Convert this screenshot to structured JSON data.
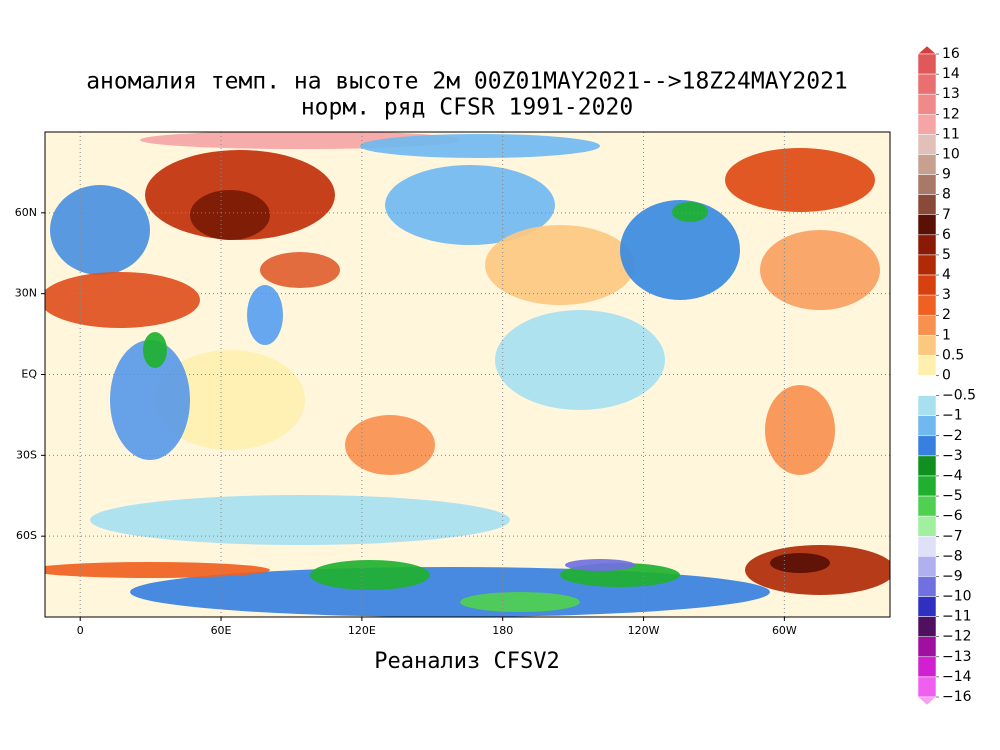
{
  "map": {
    "title": [
      "аномалия темп. на высоте 2м 00Z01MAY2021-->18Z24MAY2021",
      "норм. ряд CFSR 1991-2020"
    ],
    "xlabel": "Реанализ CFSV2",
    "xlim": [
      -15,
      345
    ],
    "ylim": [
      -90,
      90
    ],
    "xticks": [
      0,
      {
        "value": 60,
        "label": "60E"
      },
      {
        "value": 120,
        "label": "120E"
      },
      180,
      {
        "value": 240,
        "label": "120W"
      },
      {
        "value": 300,
        "label": "60W"
      }
    ],
    "yticks": [
      {
        "value": 60,
        "label": "60N"
      },
      {
        "value": 30,
        "label": "30N"
      },
      {
        "value": 0,
        "label": "EQ"
      },
      {
        "value": -30,
        "label": "30S"
      },
      {
        "value": -60,
        "label": "60S"
      }
    ],
    "grid": true,
    "colorbar": {
      "levels": [
        16,
        14,
        13,
        12,
        11,
        10,
        9,
        8,
        7,
        6,
        5,
        4,
        3,
        2,
        1,
        0.5,
        0,
        {
          "value": -0.5,
          "label": "−0.5"
        },
        {
          "value": -1,
          "label": "−1"
        },
        {
          "value": -2,
          "label": "−2"
        },
        {
          "value": -3,
          "label": "−3"
        },
        {
          "value": -4,
          "label": "−4"
        },
        {
          "value": -5,
          "label": "−5"
        },
        {
          "value": -6,
          "label": "−6"
        },
        {
          "value": -7,
          "label": "−7"
        },
        {
          "value": -8,
          "label": "−8"
        },
        {
          "value": -9,
          "label": "−9"
        },
        {
          "value": -10,
          "label": "−10"
        },
        {
          "value": -11,
          "label": "−11"
        },
        {
          "value": -12,
          "label": "−12"
        },
        {
          "value": -13,
          "label": "−13"
        },
        {
          "value": -14,
          "label": "−14"
        },
        {
          "value": -16,
          "label": "−16"
        }
      ],
      "colors": [
        "#d2413f",
        "#e0585a",
        "#e96f70",
        "#f08a8a",
        "#f5a5a5",
        "#e0c0b8",
        "#c8a090",
        "#a87868",
        "#8a4a3a",
        "#5a1005",
        "#8a1a05",
        "#b02a08",
        "#d84010",
        "#f06020",
        "#f89050",
        "#fcc880",
        "#fff0b0",
        "#ffffff",
        "#a8e0f0",
        "#70b8f0",
        "#3880e0",
        "#109020",
        "#20b030",
        "#50d050",
        "#a0f0a0",
        "#e0e0f8",
        "#b0b0f0",
        "#7070e0",
        "#3030c0",
        "#501060",
        "#a010a0",
        "#d020d0",
        "#f060f0",
        "#f8a0f0"
      ]
    }
  }
}
